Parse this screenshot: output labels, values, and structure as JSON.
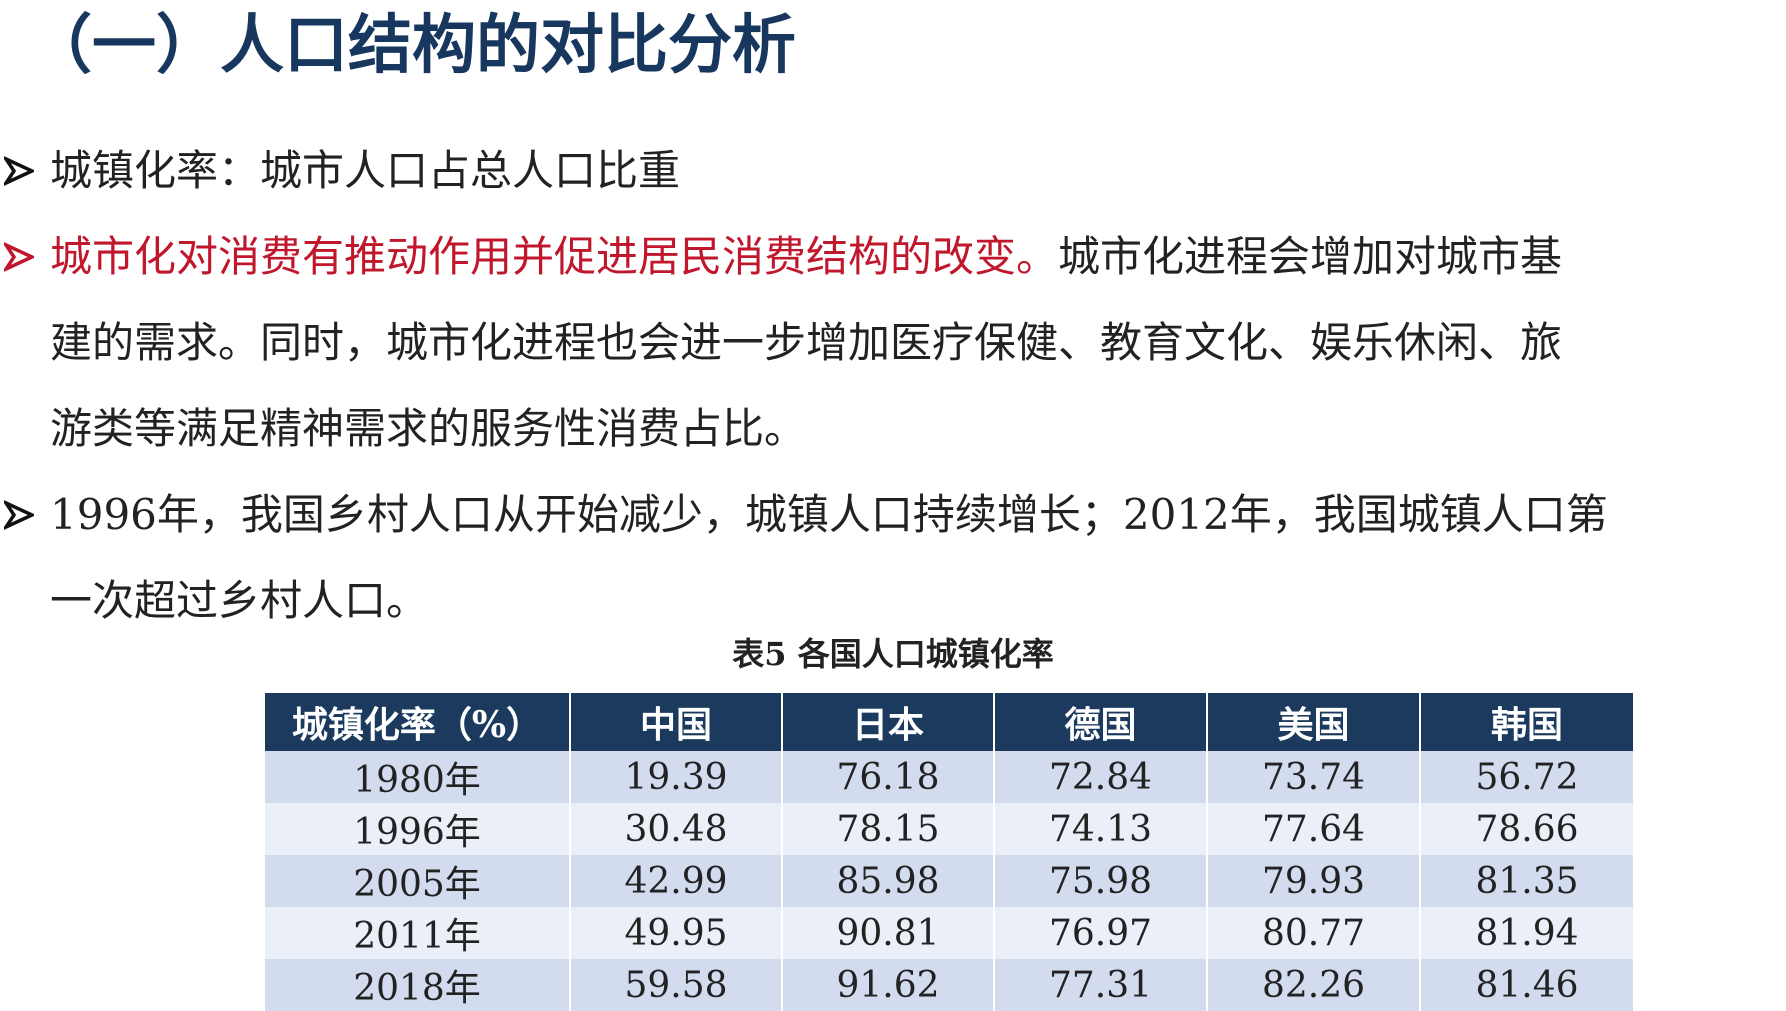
{
  "title": "（一）人口结构的对比分析",
  "bullets": [
    {
      "lines": [
        {
          "segments": [
            {
              "text": "城镇化率：城市人口占总人口比重",
              "red": false
            }
          ]
        }
      ]
    },
    {
      "lines": [
        {
          "segments": [
            {
              "text": "城市化对消费有推动作用并促进居民消费结构的改变。",
              "red": true
            },
            {
              "text": "城市化进程会增加对城市基",
              "red": false
            }
          ]
        },
        {
          "segments": [
            {
              "text": "建的需求。同时，城市化进程也会进一步增加医疗保健、教育文化、娱乐休闲、旅",
              "red": false
            }
          ]
        },
        {
          "segments": [
            {
              "text": "游类等满足精神需求的服务性消费占比。",
              "red": false
            }
          ]
        }
      ]
    },
    {
      "lines": [
        {
          "segments": [
            {
              "text": "1996年，我国乡村人口从开始减少，城镇人口持续增长；2012年，我国城镇人口第",
              "red": false
            }
          ]
        },
        {
          "segments": [
            {
              "text": "一次超过乡村人口。",
              "red": false
            }
          ]
        }
      ]
    }
  ],
  "colors": {
    "title": "#17375e",
    "red_text": "#c0172c",
    "header_bg": "#1b3a5e",
    "row_odd": "#d3dbef",
    "row_even": "#ebeff8"
  },
  "table": {
    "caption": "表5  各国人口城镇化率",
    "headers": [
      "城镇化率（%）",
      "中国",
      "日本",
      "德国",
      "美国",
      "韩国"
    ],
    "rows": [
      [
        "1980年",
        "19.39",
        "76.18",
        "72.84",
        "73.74",
        "56.72"
      ],
      [
        "1996年",
        "30.48",
        "78.15",
        "74.13",
        "77.64",
        "78.66"
      ],
      [
        "2005年",
        "42.99",
        "85.98",
        "75.98",
        "79.93",
        "81.35"
      ],
      [
        "2011年",
        "49.95",
        "90.81",
        "76.97",
        "80.77",
        "81.94"
      ],
      [
        "2018年",
        "59.58",
        "91.62",
        "77.31",
        "82.26",
        "81.46"
      ]
    ]
  }
}
